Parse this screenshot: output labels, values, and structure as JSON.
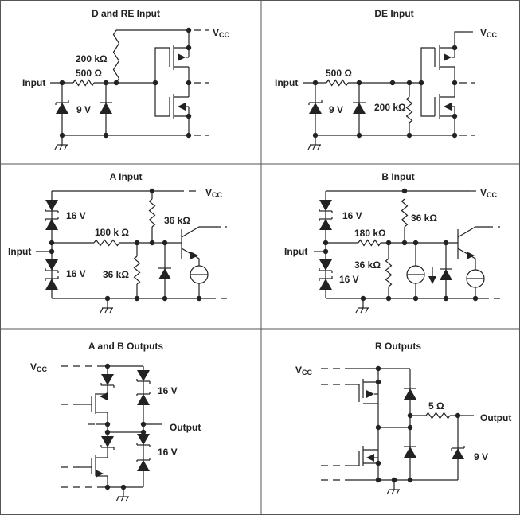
{
  "panels": [
    {
      "title": "D and RE Input",
      "vcc": "V",
      "vcc_sub": "CC",
      "input": "Input",
      "r1": "200 kΩ",
      "r2": "500 Ω",
      "zener": "9 V"
    },
    {
      "title": "DE Input",
      "vcc": "V",
      "vcc_sub": "CC",
      "input": "Input",
      "r1": "500 Ω",
      "r2": "200 kΩ",
      "zener": "9 V"
    },
    {
      "title": "A Input",
      "vcc": "V",
      "vcc_sub": "CC",
      "input": "Input",
      "z1": "16 V",
      "z2": "16 V",
      "r1": "180 k Ω",
      "r2": "36 kΩ",
      "r3": "36 kΩ"
    },
    {
      "title": "B Input",
      "vcc": "V",
      "vcc_sub": "CC",
      "input": "Input",
      "z1": "16 V",
      "z2": "16 V",
      "r1": "180 kΩ",
      "r2": "36 kΩ",
      "r3": "36 kΩ"
    },
    {
      "title": "A and B Outputs",
      "vcc": "V",
      "vcc_sub": "CC",
      "output": "Output",
      "z1": "16 V",
      "z2": "16 V"
    },
    {
      "title": "R Outputs",
      "vcc": "V",
      "vcc_sub": "CC",
      "output": "Output",
      "r1": "5 Ω",
      "zener": "9 V"
    }
  ],
  "colors": {
    "line": "#222222",
    "border": "#555555",
    "background": "#ffffff"
  }
}
